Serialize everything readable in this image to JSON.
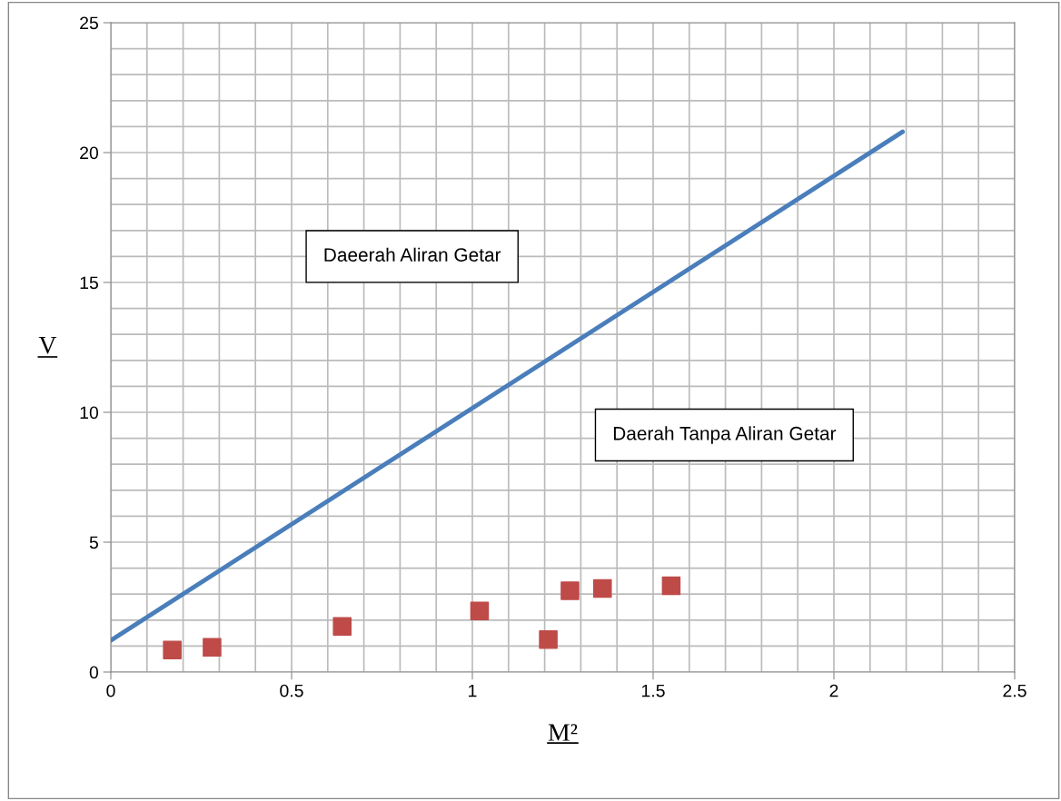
{
  "chart_data": {
    "type": "scatter",
    "xlabel": "M²",
    "ylabel": "V",
    "annotations": [
      "Daeerah Aliran Getar",
      "Daerah Tanpa Aliran Getar"
    ],
    "series": [
      {
        "type": "line",
        "color": "#4a7ebb",
        "x": [
          0,
          2.19
        ],
        "values": [
          1.22,
          20.8
        ],
        "marker": "none"
      },
      {
        "color": "#be4b48",
        "x": [
          0.17,
          0.28,
          0.64,
          1.02,
          1.21,
          1.27,
          1.36,
          1.55
        ],
        "values": [
          0.85,
          0.95,
          1.76,
          2.35,
          1.25,
          3.13,
          3.22,
          3.32
        ],
        "marker": "square"
      }
    ],
    "xlim": [
      0,
      2.5
    ],
    "ylim": [
      0,
      25
    ],
    "xticks": [
      0,
      0.5,
      1,
      1.5,
      2,
      2.5
    ],
    "yticks": [
      0,
      5,
      10,
      15,
      20,
      25
    ],
    "grid": true,
    "legend": false
  }
}
